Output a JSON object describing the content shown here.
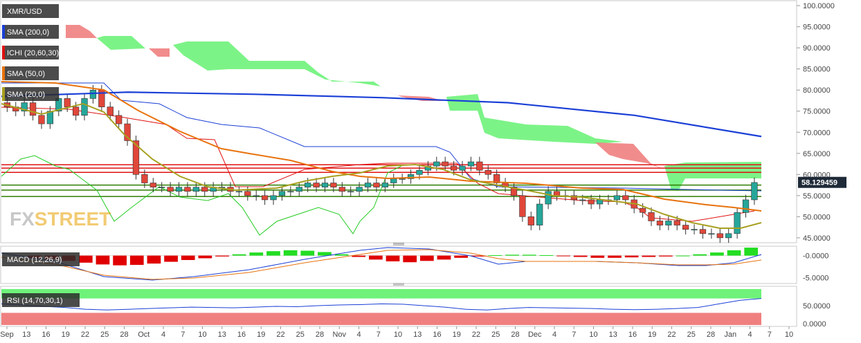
{
  "chart_data": [
    {
      "type": "candlestick",
      "symbol": "XMR/USD",
      "indicators": [
        "SMA (200,0)",
        "ICHI (20,60,30)",
        "SMA (50,0)",
        "SMA (20,0)"
      ],
      "ylim": [
        44,
        101
      ],
      "y_ticks": [
        "100.0000",
        "95.0000",
        "90.0000",
        "85.0000",
        "80.0000",
        "75.0000",
        "70.0000",
        "65.0000",
        "60.0000",
        "55.0000",
        "50.0000",
        "45.0000"
      ],
      "last_price": "58.129459",
      "x_ticks": [
        "Sep",
        "13",
        "16",
        "19",
        "22",
        "25",
        "28",
        "Oct",
        "4",
        "7",
        "10",
        "13",
        "16",
        "19",
        "22",
        "25",
        "28",
        "Nov",
        "4",
        "7",
        "10",
        "13",
        "16",
        "19",
        "22",
        "25",
        "28",
        "Dec",
        "4",
        "7",
        "10",
        "13",
        "16",
        "19",
        "22",
        "25",
        "28",
        "Jan",
        "4",
        "7",
        "10"
      ],
      "horizontal_lines": [
        {
          "value": 62.3,
          "color": "#e01010"
        },
        {
          "value": 61.5,
          "color": "#e01010"
        },
        {
          "value": 60.5,
          "color": "#e01010"
        },
        {
          "value": 57.5,
          "color": "#2e7d00"
        },
        {
          "value": 56.3,
          "color": "#2e7d00"
        },
        {
          "value": 54.8,
          "color": "#2e7d00"
        }
      ],
      "sma200": [
        78.5,
        79.5,
        79.0,
        78.2,
        77.0,
        74.0,
        69.0
      ],
      "candle_closes": [
        76,
        75,
        77,
        74,
        72,
        75,
        78,
        76,
        74,
        78,
        80,
        76,
        74,
        72,
        68,
        60,
        58,
        57,
        57,
        56,
        57,
        56,
        57,
        56,
        57,
        57,
        56,
        56,
        55,
        55,
        54,
        55,
        56,
        56,
        57,
        58,
        57,
        58,
        57,
        56,
        56,
        57,
        58,
        57,
        58,
        59,
        59,
        60,
        61,
        62,
        63,
        62,
        61,
        62,
        63,
        61,
        60,
        58,
        57,
        55,
        50,
        48,
        53,
        56,
        55,
        55,
        54,
        54,
        53,
        54,
        54,
        55,
        54,
        52,
        51,
        49,
        48,
        49,
        48,
        47,
        47,
        46,
        46,
        45,
        46,
        51,
        54,
        58.1
      ],
      "colors": {
        "up": "#26a69a",
        "down": "#e0473a",
        "sma200": "#1a3fd6",
        "sma50": "#e8720c",
        "sma20": "#a8a020",
        "kumo_bull": "#6ef27a",
        "kumo_bear": "#f08080"
      }
    },
    {
      "type": "line",
      "title": "MACD (12,26,9)",
      "y_ticks": [
        "-0.0000",
        "-5.0000"
      ],
      "ylim": [
        -6,
        1.5
      ],
      "histogram": [
        -0.6,
        -0.8,
        -1.2,
        -1.6,
        -2.0,
        -2.2,
        -2.1,
        -1.8,
        -1.4,
        -1.0,
        -0.6,
        -0.2,
        0.3,
        0.7,
        1.0,
        1.2,
        1.1,
        0.8,
        0.3,
        -0.3,
        -0.9,
        -1.3,
        -1.5,
        -1.2,
        -0.9,
        -0.5,
        -0.2,
        0.1,
        0.2,
        0.2,
        0.1,
        -0.1,
        -0.3,
        -0.5,
        -0.5,
        -0.4,
        -0.3,
        -0.2,
        0.0,
        0.3,
        0.7,
        1.2,
        1.8
      ]
    },
    {
      "type": "line",
      "title": "RSI (14,70,30,1)",
      "y_ticks": [
        "50.0000",
        "0.0000"
      ],
      "ylim": [
        0,
        100
      ],
      "levels": [
        70,
        30
      ],
      "values": [
        55,
        52,
        48,
        45,
        40,
        38,
        40,
        42,
        44,
        46,
        45,
        44,
        46,
        48,
        47,
        50,
        52,
        53,
        55,
        54,
        50,
        46,
        40,
        38,
        42,
        45,
        44,
        43,
        42,
        40,
        39,
        40,
        42,
        45,
        55,
        65,
        70
      ]
    }
  ],
  "logo": {
    "fx": "FX",
    "street": "STREET"
  }
}
